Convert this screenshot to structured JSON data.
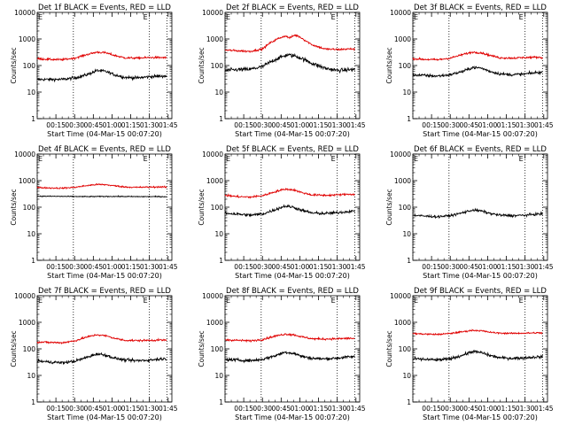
{
  "chart_data": [
    {
      "type": "line",
      "title": "Det 1f  BLACK = Events, RED = LLD",
      "flag": "E",
      "flag2": "E",
      "xlabel": "Start Time (04-Mar-15 00:07:20)",
      "ylabel": "Counts/sec",
      "xlim": [
        5,
        105
      ],
      "ylim": [
        1,
        10000
      ],
      "yscale": "log",
      "xticks": [
        "00:15",
        "00:30",
        "00:45",
        "01:00",
        "01:15",
        "01:30",
        "01:45"
      ],
      "xtick_values": [
        15,
        30,
        45,
        60,
        75,
        90,
        105
      ],
      "yticks": [
        "1",
        "10",
        "100",
        "1000",
        "10000"
      ],
      "vlines": [
        0,
        29,
        90,
        104
      ],
      "series": [
        {
          "name": "Events",
          "color": "#000000",
          "x": [
            0,
            10,
            20,
            30,
            40,
            48,
            55,
            62,
            70,
            80,
            90,
            100,
            104
          ],
          "y": [
            30,
            30,
            30,
            34,
            45,
            65,
            60,
            45,
            36,
            34,
            38,
            40,
            40
          ],
          "noise": 0.06
        },
        {
          "name": "LLD",
          "color": "#e00000",
          "x": [
            0,
            10,
            20,
            30,
            40,
            48,
            55,
            62,
            70,
            80,
            90,
            100,
            104
          ],
          "y": [
            180,
            170,
            165,
            190,
            260,
            320,
            300,
            240,
            195,
            190,
            200,
            200,
            195
          ],
          "noise": 0.04
        }
      ]
    },
    {
      "type": "line",
      "title": "Det 2f  BLACK = Events, RED = LLD",
      "flag": "E",
      "flag2": "E",
      "xlabel": "Start Time (04-Mar-15 00:07:20)",
      "ylabel": "Counts/sec",
      "xlim": [
        5,
        105
      ],
      "ylim": [
        1,
        10000
      ],
      "yscale": "log",
      "xticks": [
        "00:15",
        "00:30",
        "00:45",
        "01:00",
        "01:15",
        "01:30",
        "01:45"
      ],
      "xtick_values": [
        15,
        30,
        45,
        60,
        75,
        90,
        105
      ],
      "yticks": [
        "1",
        "10",
        "100",
        "1000",
        "10000"
      ],
      "vlines": [
        0,
        29,
        90,
        104
      ],
      "series": [
        {
          "name": "Events",
          "color": "#000000",
          "x": [
            0,
            10,
            20,
            30,
            38,
            44,
            50,
            56,
            62,
            70,
            80,
            90,
            100,
            104
          ],
          "y": [
            65,
            70,
            72,
            90,
            150,
            200,
            250,
            230,
            180,
            120,
            80,
            65,
            70,
            70
          ],
          "noise": 0.08
        },
        {
          "name": "LLD",
          "color": "#e00000",
          "x": [
            0,
            10,
            20,
            30,
            36,
            42,
            48,
            52,
            56,
            60,
            64,
            70,
            80,
            90,
            100,
            104
          ],
          "y": [
            380,
            360,
            340,
            420,
            700,
            1000,
            1300,
            1100,
            1400,
            1200,
            900,
            600,
            420,
            400,
            420,
            420
          ],
          "noise": 0.04
        }
      ]
    },
    {
      "type": "line",
      "title": "Det 3f  BLACK = Events, RED = LLD",
      "flag": "E",
      "flag2": "E",
      "xlabel": "Start Time (04-Mar-15 00:07:20)",
      "ylabel": "Counts/sec",
      "xlim": [
        5,
        105
      ],
      "ylim": [
        1,
        10000
      ],
      "yscale": "log",
      "xticks": [
        "00:15",
        "00:30",
        "00:45",
        "01:00",
        "01:15",
        "01:30",
        "01:45"
      ],
      "xtick_values": [
        15,
        30,
        45,
        60,
        75,
        90,
        105
      ],
      "yticks": [
        "1",
        "10",
        "100",
        "1000",
        "10000"
      ],
      "vlines": [
        0,
        29,
        90,
        104
      ],
      "series": [
        {
          "name": "Events",
          "color": "#000000",
          "x": [
            0,
            10,
            20,
            30,
            40,
            48,
            55,
            62,
            70,
            80,
            90,
            100,
            104
          ],
          "y": [
            45,
            42,
            40,
            45,
            60,
            85,
            80,
            60,
            48,
            45,
            48,
            55,
            55
          ],
          "noise": 0.06
        },
        {
          "name": "LLD",
          "color": "#e00000",
          "x": [
            0,
            10,
            20,
            30,
            40,
            48,
            55,
            62,
            70,
            80,
            90,
            100,
            104
          ],
          "y": [
            180,
            170,
            165,
            190,
            260,
            320,
            300,
            240,
            195,
            190,
            200,
            205,
            200
          ],
          "noise": 0.04
        }
      ]
    },
    {
      "type": "line",
      "title": "Det 4f  BLACK = Events, RED = LLD",
      "flag": "E",
      "flag2": "E",
      "xlabel": "Start Time (04-Mar-15 00:07:20)",
      "ylabel": "Counts/sec",
      "xlim": [
        5,
        105
      ],
      "ylim": [
        1,
        10000
      ],
      "yscale": "log",
      "xticks": [
        "00:15",
        "00:30",
        "00:45",
        "01:00",
        "01:15",
        "01:30",
        "01:45"
      ],
      "xtick_values": [
        15,
        30,
        45,
        60,
        75,
        90,
        105
      ],
      "yticks": [
        "1",
        "10",
        "100",
        "1000",
        "10000"
      ],
      "vlines": [
        0,
        29,
        90,
        104
      ],
      "series": [
        {
          "name": "Events",
          "color": "#000000",
          "x": [
            0,
            20,
            40,
            60,
            80,
            104
          ],
          "y": [
            260,
            255,
            250,
            255,
            250,
            250
          ],
          "noise": 0.02
        },
        {
          "name": "LLD",
          "color": "#e00000",
          "x": [
            0,
            10,
            20,
            30,
            40,
            48,
            55,
            62,
            70,
            80,
            90,
            100,
            104
          ],
          "y": [
            550,
            530,
            520,
            560,
            650,
            720,
            700,
            640,
            580,
            560,
            570,
            580,
            560
          ],
          "noise": 0.03
        }
      ]
    },
    {
      "type": "line",
      "title": "Det 5f  BLACK = Events, RED = LLD",
      "flag": "E",
      "flag2": "E",
      "xlabel": "Start Time (04-Mar-15 00:07:20)",
      "ylabel": "Counts/sec",
      "xlim": [
        5,
        105
      ],
      "ylim": [
        1,
        10000
      ],
      "yscale": "log",
      "xticks": [
        "00:15",
        "00:30",
        "00:45",
        "01:00",
        "01:15",
        "01:30",
        "01:45"
      ],
      "xtick_values": [
        15,
        30,
        45,
        60,
        75,
        90,
        105
      ],
      "yticks": [
        "1",
        "10",
        "100",
        "1000",
        "10000"
      ],
      "vlines": [
        0,
        29,
        90,
        104
      ],
      "series": [
        {
          "name": "Events",
          "color": "#000000",
          "x": [
            0,
            10,
            20,
            30,
            40,
            48,
            55,
            62,
            70,
            80,
            90,
            100,
            104
          ],
          "y": [
            60,
            55,
            50,
            55,
            80,
            110,
            100,
            75,
            60,
            58,
            62,
            70,
            70
          ],
          "noise": 0.06
        },
        {
          "name": "LLD",
          "color": "#e00000",
          "x": [
            0,
            10,
            20,
            30,
            40,
            48,
            55,
            62,
            70,
            80,
            90,
            100,
            104
          ],
          "y": [
            280,
            250,
            240,
            270,
            380,
            480,
            450,
            350,
            290,
            280,
            290,
            310,
            300
          ],
          "noise": 0.04
        }
      ]
    },
    {
      "type": "line",
      "title": "Det 6f  BLACK = Events, RED = LLD",
      "flag": "E",
      "flag2": "E",
      "xlabel": "Start Time (04-Mar-15 00:07:20)",
      "ylabel": "Counts/sec",
      "xlim": [
        5,
        105
      ],
      "ylim": [
        1,
        10000
      ],
      "yscale": "log",
      "xticks": [
        "00:15",
        "00:30",
        "00:45",
        "01:00",
        "01:15",
        "01:30",
        "01:45"
      ],
      "xtick_values": [
        15,
        30,
        45,
        60,
        75,
        90,
        105
      ],
      "yticks": [
        "1",
        "10",
        "100",
        "1000",
        "10000"
      ],
      "vlines": [
        0,
        29,
        90,
        104
      ],
      "series": [
        {
          "name": "Events",
          "color": "#000000",
          "x": [
            0,
            10,
            20,
            30,
            40,
            48,
            55,
            62,
            70,
            80,
            90,
            100,
            104
          ],
          "y": [
            50,
            46,
            44,
            48,
            62,
            78,
            72,
            58,
            50,
            48,
            50,
            55,
            55
          ],
          "noise": 0.05
        }
      ]
    },
    {
      "type": "line",
      "title": "Det 7f  BLACK = Events, RED = LLD",
      "flag": "E",
      "flag2": "E",
      "xlabel": "Start Time (04-Mar-15 00:07:20)",
      "ylabel": "Counts/sec",
      "xlim": [
        5,
        105
      ],
      "ylim": [
        1,
        10000
      ],
      "yscale": "log",
      "xticks": [
        "00:15",
        "00:30",
        "00:45",
        "01:00",
        "01:15",
        "01:30",
        "01:45"
      ],
      "xtick_values": [
        15,
        30,
        45,
        60,
        75,
        90,
        105
      ],
      "yticks": [
        "1",
        "10",
        "100",
        "1000",
        "10000"
      ],
      "vlines": [
        0,
        29,
        90,
        104
      ],
      "series": [
        {
          "name": "Events",
          "color": "#000000",
          "x": [
            0,
            10,
            20,
            30,
            40,
            48,
            55,
            62,
            70,
            80,
            90,
            100,
            104
          ],
          "y": [
            35,
            32,
            30,
            34,
            48,
            65,
            58,
            45,
            38,
            36,
            38,
            42,
            42
          ],
          "noise": 0.06
        },
        {
          "name": "LLD",
          "color": "#e00000",
          "x": [
            0,
            10,
            20,
            30,
            40,
            48,
            55,
            62,
            70,
            80,
            90,
            100,
            104
          ],
          "y": [
            180,
            175,
            170,
            200,
            280,
            340,
            310,
            250,
            210,
            205,
            210,
            215,
            210
          ],
          "noise": 0.04
        }
      ]
    },
    {
      "type": "line",
      "title": "Det 8f  BLACK = Events, RED = LLD",
      "flag": "E",
      "flag2": "E",
      "xlabel": "Start Time (04-Mar-15 00:07:20)",
      "ylabel": "Counts/sec",
      "xlim": [
        5,
        105
      ],
      "ylim": [
        1,
        10000
      ],
      "yscale": "log",
      "xticks": [
        "00:15",
        "00:30",
        "00:45",
        "01:00",
        "01:15",
        "01:30",
        "01:45"
      ],
      "xtick_values": [
        15,
        30,
        45,
        60,
        75,
        90,
        105
      ],
      "yticks": [
        "1",
        "10",
        "100",
        "1000",
        "10000"
      ],
      "vlines": [
        0,
        29,
        90,
        104
      ],
      "series": [
        {
          "name": "Events",
          "color": "#000000",
          "x": [
            0,
            10,
            20,
            30,
            40,
            48,
            55,
            62,
            70,
            80,
            90,
            100,
            104
          ],
          "y": [
            40,
            38,
            36,
            40,
            55,
            75,
            68,
            52,
            44,
            42,
            45,
            50,
            50
          ],
          "noise": 0.06
        },
        {
          "name": "LLD",
          "color": "#e00000",
          "x": [
            0,
            10,
            20,
            30,
            40,
            48,
            55,
            62,
            70,
            80,
            90,
            100,
            104
          ],
          "y": [
            220,
            210,
            200,
            225,
            300,
            360,
            340,
            280,
            240,
            235,
            240,
            250,
            245
          ],
          "noise": 0.04
        }
      ]
    },
    {
      "type": "line",
      "title": "Det 9f  BLACK = Events, RED = LLD",
      "flag": "E",
      "flag2": "E",
      "xlabel": "Start Time (04-Mar-15 00:07:20)",
      "ylabel": "Counts/sec",
      "xlim": [
        5,
        105
      ],
      "ylim": [
        1,
        10000
      ],
      "yscale": "log",
      "xticks": [
        "00:15",
        "00:30",
        "00:45",
        "01:00",
        "01:15",
        "01:30",
        "01:45"
      ],
      "xtick_values": [
        15,
        30,
        45,
        60,
        75,
        90,
        105
      ],
      "yticks": [
        "1",
        "10",
        "100",
        "1000",
        "10000"
      ],
      "vlines": [
        0,
        29,
        90,
        104
      ],
      "series": [
        {
          "name": "Events",
          "color": "#000000",
          "x": [
            0,
            10,
            20,
            30,
            40,
            48,
            55,
            62,
            70,
            80,
            90,
            100,
            104
          ],
          "y": [
            42,
            40,
            38,
            42,
            58,
            80,
            72,
            56,
            46,
            44,
            46,
            50,
            50
          ],
          "noise": 0.06
        },
        {
          "name": "LLD",
          "color": "#e00000",
          "x": [
            0,
            10,
            20,
            30,
            40,
            48,
            55,
            62,
            70,
            80,
            90,
            100,
            104
          ],
          "y": [
            380,
            360,
            350,
            380,
            440,
            500,
            480,
            420,
            390,
            385,
            390,
            400,
            395
          ],
          "noise": 0.03
        }
      ]
    }
  ]
}
